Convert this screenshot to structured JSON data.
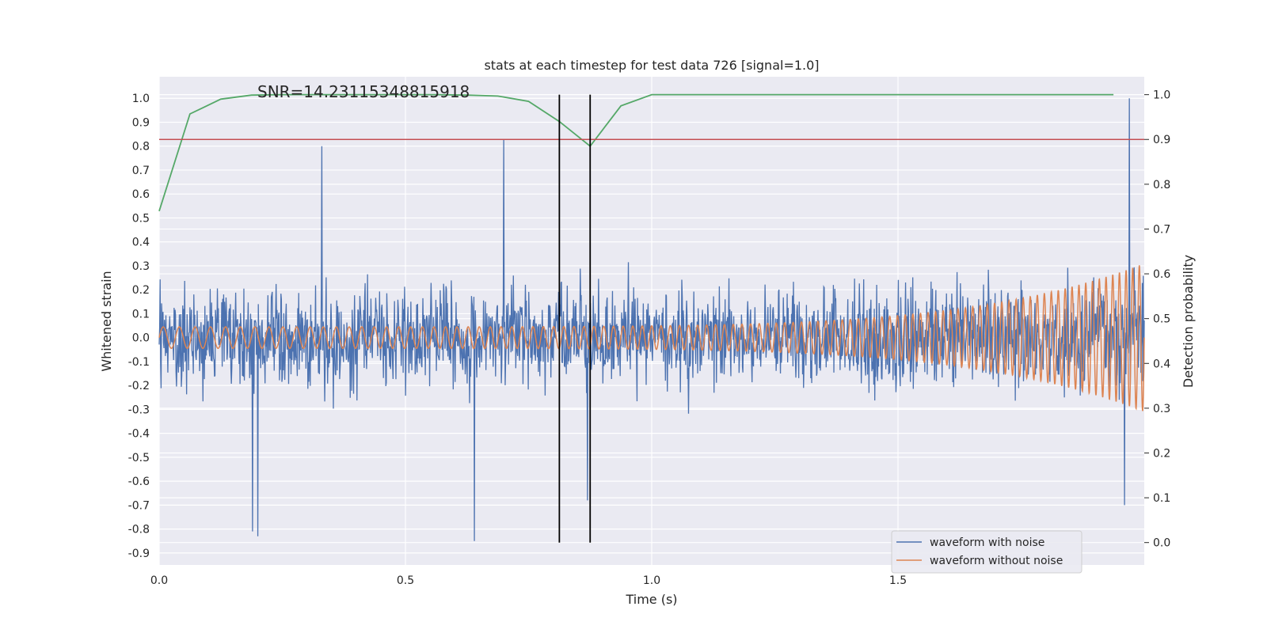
{
  "chart_data": {
    "type": "line",
    "title": "stats at each timestep for test data 726 [signal=1.0]",
    "annotation": "SNR=14.23115348815918",
    "xlabel": "Time (s)",
    "ylabel_left": "Whitened strain",
    "ylabel_right": "Detection probability",
    "xlim": [
      0.0,
      2.0
    ],
    "ylim_left": [
      -0.95,
      1.09
    ],
    "ylim_right": [
      -0.05,
      1.04
    ],
    "x_ticks": [
      "0.0",
      "0.5",
      "1.0",
      "1.5"
    ],
    "y_ticks_left": [
      "1.0",
      "0.9",
      "0.8",
      "0.7",
      "0.6",
      "0.5",
      "0.4",
      "0.3",
      "0.2",
      "0.1",
      "0.0",
      "-0.1",
      "-0.2",
      "-0.3",
      "-0.4",
      "-0.5",
      "-0.6",
      "-0.7",
      "-0.8",
      "-0.9"
    ],
    "y_ticks_right": [
      "1.0",
      "0.9",
      "0.8",
      "0.7",
      "0.6",
      "0.5",
      "0.4",
      "0.3",
      "0.2",
      "0.1",
      "0.0"
    ],
    "threshold": {
      "axis": "right",
      "value": 0.9,
      "color": "#c44e52"
    },
    "vertical_markers": {
      "x": [
        0.8125,
        0.875
      ],
      "y_range_right": [
        0.0,
        1.0
      ],
      "color": "#000000"
    },
    "series": [
      {
        "name": "waveform with noise",
        "axis": "left",
        "color": "#4c72b0",
        "kind": "noisy-trace",
        "approx_amplitude_range": [
          -0.85,
          1.0
        ],
        "samples": 2048,
        "notable_peaks": [
          {
            "x": 0.33,
            "y": 0.8
          },
          {
            "x": 0.7,
            "y": 0.83
          },
          {
            "x": 1.97,
            "y": 1.0
          },
          {
            "x": 0.19,
            "y": -0.81
          },
          {
            "x": 0.2,
            "y": -0.83
          },
          {
            "x": 0.64,
            "y": -0.85
          },
          {
            "x": 0.87,
            "y": -0.68
          },
          {
            "x": 1.96,
            "y": -0.7
          }
        ]
      },
      {
        "name": "waveform without noise",
        "axis": "left",
        "color": "#dd8452",
        "kind": "chirp",
        "start_frequency_hz": 30,
        "end_frequency_hz": 75,
        "start_amplitude": 0.045,
        "end_amplitude": 0.31
      },
      {
        "name": "detection probability",
        "axis": "right",
        "color": "#55a868",
        "x": [
          0.0,
          0.0625,
          0.125,
          0.1875,
          0.25,
          0.3125,
          0.375,
          0.4375,
          0.5,
          0.5625,
          0.625,
          0.6875,
          0.75,
          0.8125,
          0.875,
          0.9375,
          1.0,
          1.0625,
          1.125,
          1.1875,
          1.25,
          1.3125,
          1.375,
          1.4375,
          1.5,
          1.5625,
          1.625,
          1.6875,
          1.75,
          1.8125,
          1.875,
          1.9375
        ],
        "values": [
          0.74,
          0.957,
          0.99,
          0.999,
          1.0,
          1.0,
          1.0,
          1.0,
          1.0,
          1.0,
          0.999,
          0.997,
          0.985,
          0.94,
          0.885,
          0.975,
          1.0,
          1.0,
          1.0,
          1.0,
          1.0,
          1.0,
          1.0,
          1.0,
          1.0,
          1.0,
          1.0,
          1.0,
          1.0,
          1.0,
          1.0,
          1.0
        ]
      }
    ],
    "legend": {
      "placement": "lower-right",
      "entries": [
        {
          "label": "waveform with noise",
          "color": "#4c72b0"
        },
        {
          "label": "waveform without noise",
          "color": "#dd8452"
        }
      ]
    }
  }
}
